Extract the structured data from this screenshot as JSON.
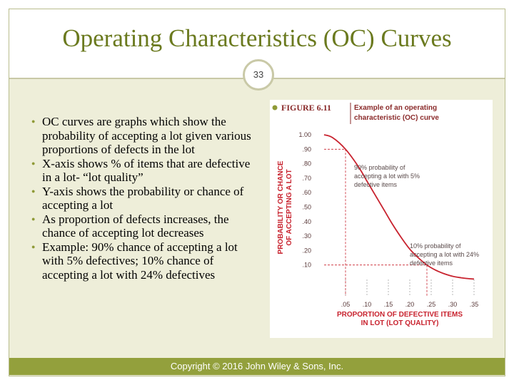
{
  "slide": {
    "title": "Operating Characteristics (OC) Curves",
    "page_number": "33",
    "footer": "Copyright © 2016 John Wiley & Sons, Inc."
  },
  "bullets": [
    "OC curves are graphs which show the probability of accepting a lot given various proportions of defects in the lot",
    "X-axis shows % of items that are defective in a lot- “lot quality”",
    "Y-axis shows the probability or chance of accepting a lot",
    "As proportion of defects increases, the chance of accepting lot decreases",
    "Example: 90% chance of accepting a lot with 5% defectives; 10% chance of accepting a lot with 24% defectives"
  ],
  "colors": {
    "title": "#6b7a1f",
    "curve": "#c8222e",
    "footer_band": "#93a03c",
    "axis_text": "#5a3a3a"
  },
  "chart_data": {
    "type": "line",
    "figure_label": "FIGURE 6.11",
    "title": "Example of an operating characteristic (OC) curve",
    "xlabel": "PROPORTION OF DEFECTIVE ITEMS IN LOT (LOT QUALITY)",
    "ylabel": "PROBABILITY OR CHANCE OF ACCEPTING A LOT",
    "x_ticks": [
      ".05",
      ".10",
      ".15",
      ".20",
      ".25",
      ".30",
      ".35"
    ],
    "y_ticks": [
      "1.00",
      ".90",
      ".80",
      ".70",
      ".60",
      ".50",
      ".40",
      ".30",
      ".20",
      ".10"
    ],
    "xlim": [
      0,
      0.35
    ],
    "ylim": [
      0,
      1.0
    ],
    "series": [
      {
        "x": [
          0,
          0.02,
          0.05,
          0.08,
          0.1,
          0.12,
          0.14,
          0.16,
          0.18,
          0.2,
          0.22,
          0.24,
          0.26,
          0.28,
          0.3,
          0.32,
          0.34,
          0.35
        ],
        "y": [
          1.0,
          0.98,
          0.9,
          0.78,
          0.68,
          0.58,
          0.48,
          0.38,
          0.29,
          0.21,
          0.15,
          0.1,
          0.065,
          0.04,
          0.022,
          0.012,
          0.005,
          0.003
        ]
      }
    ],
    "annotations": [
      {
        "text": "90% probability of accepting a lot with 5% defective items",
        "x": 0.05,
        "y": 0.9
      },
      {
        "text": "10% probability of accepting a lot with 24% defective items",
        "x": 0.24,
        "y": 0.1
      }
    ],
    "grid": false
  }
}
